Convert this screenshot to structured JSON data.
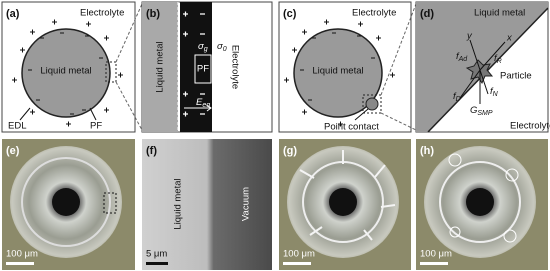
{
  "panels": [
    {
      "label": "(a)",
      "texts": [
        "Electrolyte",
        "Liquid metal",
        "EDL",
        "PF"
      ]
    },
    {
      "label": "(b)",
      "texts": [
        "Liquid metal",
        "PF",
        "Electrolyte"
      ],
      "symbols": [
        {
          "symbol": "σ",
          "sub": "g"
        },
        {
          "symbol": "σ",
          "sub": "0"
        },
        {
          "symbol": "E",
          "sub": "eq"
        }
      ]
    },
    {
      "label": "(c)",
      "texts": [
        "Electrolyte",
        "Liquid metal",
        "Point contact"
      ]
    },
    {
      "label": "(d)",
      "texts": [
        "Liquid metal",
        "y",
        "x",
        "Particle",
        "Electrolyte"
      ],
      "symbols": [
        {
          "symbol": "f",
          "sub": "Ad"
        },
        {
          "symbol": "f",
          "sub": "R"
        },
        {
          "symbol": "f",
          "sub": "D"
        },
        {
          "symbol": "f",
          "sub": "N"
        },
        {
          "symbol": "G",
          "sub": "SMP"
        }
      ]
    },
    {
      "label": "(e)",
      "texts": [
        "100 μm"
      ]
    },
    {
      "label": "(f)",
      "texts": [
        "Liquid metal",
        "Vacuum",
        "5 μm"
      ]
    },
    {
      "label": "(g)",
      "texts": [
        "100 μm"
      ]
    },
    {
      "label": "(h)",
      "texts": [
        "100 μm"
      ]
    }
  ]
}
